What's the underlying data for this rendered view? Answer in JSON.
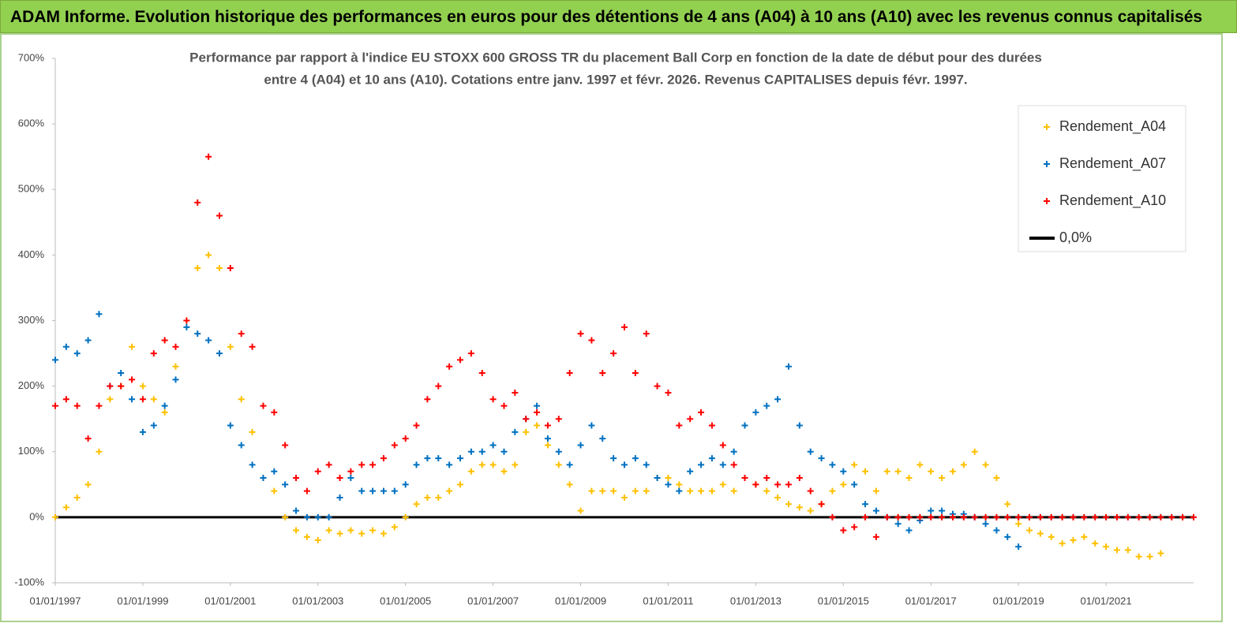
{
  "header": {
    "title": "ADAM Informe. Evolution historique des performances en euros pour des détentions de 4 ans (A04) à 10 ans (A10) avec les revenus connus capitalisés"
  },
  "chart_data": {
    "type": "scatter",
    "title_lines": [
      "Performance par rapport à l'indice EU STOXX 600 GROSS TR  du placement Ball Corp en fonction de la date de début pour des durées",
      "entre 4 (A04) et 10 ans (A10). Cotations entre janv. 1997 et févr. 2026. Revenus CAPITALISES depuis févr. 1997."
    ],
    "x": [
      "01/01/1997",
      "01/04/1997",
      "01/07/1997",
      "01/10/1997",
      "01/01/1998",
      "01/04/1998",
      "01/07/1998",
      "01/10/1998",
      "01/01/1999",
      "01/04/1999",
      "01/07/1999",
      "01/10/1999",
      "01/01/2000",
      "01/04/2000",
      "01/07/2000",
      "01/10/2000",
      "01/01/2001",
      "01/04/2001",
      "01/07/2001",
      "01/10/2001",
      "01/01/2002",
      "01/04/2002",
      "01/07/2002",
      "01/10/2002",
      "01/01/2003",
      "01/04/2003",
      "01/07/2003",
      "01/10/2003",
      "01/01/2004",
      "01/04/2004",
      "01/07/2004",
      "01/10/2004",
      "01/01/2005",
      "01/04/2005",
      "01/07/2005",
      "01/10/2005",
      "01/01/2006",
      "01/04/2006",
      "01/07/2006",
      "01/10/2006",
      "01/01/2007",
      "01/04/2007",
      "01/07/2007",
      "01/10/2007",
      "01/01/2008",
      "01/04/2008",
      "01/07/2008",
      "01/10/2008",
      "01/01/2009",
      "01/04/2009",
      "01/07/2009",
      "01/10/2009",
      "01/01/2010",
      "01/04/2010",
      "01/07/2010",
      "01/10/2010",
      "01/01/2011",
      "01/04/2011",
      "01/07/2011",
      "01/10/2011",
      "01/01/2012",
      "01/04/2012",
      "01/07/2012",
      "01/10/2012",
      "01/01/2013",
      "01/04/2013",
      "01/07/2013",
      "01/10/2013",
      "01/01/2014",
      "01/04/2014",
      "01/07/2014",
      "01/10/2014",
      "01/01/2015",
      "01/04/2015",
      "01/07/2015",
      "01/10/2015",
      "01/01/2016",
      "01/04/2016",
      "01/07/2016",
      "01/10/2016",
      "01/01/2017",
      "01/04/2017",
      "01/07/2017",
      "01/10/2017",
      "01/01/2018",
      "01/04/2018",
      "01/07/2018",
      "01/10/2018",
      "01/01/2019",
      "01/04/2019",
      "01/07/2019",
      "01/10/2019",
      "01/01/2020",
      "01/04/2020",
      "01/07/2020",
      "01/10/2020",
      "01/01/2021",
      "01/04/2021",
      "01/07/2021",
      "01/10/2021",
      "01/01/2022",
      "01/04/2022",
      "01/07/2022",
      "01/10/2022",
      "01/01/2023"
    ],
    "series": [
      {
        "name": "Rendement_A04",
        "color": "#ffc000",
        "values": [
          0,
          15,
          30,
          50,
          100,
          180,
          200,
          260,
          200,
          180,
          160,
          230,
          300,
          380,
          400,
          380,
          260,
          180,
          130,
          60,
          40,
          0,
          -20,
          -30,
          -35,
          -20,
          -25,
          -20,
          -25,
          -20,
          -25,
          -15,
          0,
          20,
          30,
          30,
          40,
          50,
          70,
          80,
          80,
          70,
          80,
          130,
          140,
          110,
          80,
          50,
          10,
          40,
          40,
          40,
          30,
          40,
          40,
          60,
          60,
          50,
          40,
          40,
          40,
          50,
          40,
          60,
          50,
          40,
          30,
          20,
          15,
          10,
          20,
          40,
          50,
          80,
          70,
          40,
          70,
          70,
          60,
          80,
          70,
          60,
          70,
          80,
          100,
          80,
          60,
          20,
          -10,
          -20,
          -25,
          -30,
          -40,
          -35,
          -30,
          -40,
          -45,
          -50,
          -50,
          -60,
          -60,
          -55,
          null,
          null,
          null
        ]
      },
      {
        "name": "Rendement_A07",
        "color": "#0070c0",
        "values": [
          240,
          260,
          250,
          270,
          310,
          200,
          220,
          180,
          130,
          140,
          170,
          210,
          290,
          280,
          270,
          250,
          140,
          110,
          80,
          60,
          70,
          50,
          10,
          0,
          0,
          0,
          30,
          60,
          40,
          40,
          40,
          40,
          50,
          80,
          90,
          90,
          80,
          90,
          100,
          100,
          110,
          100,
          130,
          150,
          170,
          120,
          100,
          80,
          110,
          140,
          120,
          90,
          80,
          90,
          80,
          60,
          50,
          40,
          70,
          80,
          90,
          80,
          100,
          140,
          160,
          170,
          180,
          230,
          140,
          100,
          90,
          80,
          70,
          50,
          20,
          10,
          0,
          -10,
          -20,
          -5,
          10,
          10,
          5,
          5,
          0,
          -10,
          -20,
          -30,
          -45,
          null,
          null,
          null,
          null,
          null,
          null,
          null,
          null,
          null,
          null,
          null,
          null,
          null,
          null,
          null,
          null
        ]
      },
      {
        "name": "Rendement_A10",
        "color": "#ff0000",
        "values": [
          170,
          180,
          170,
          120,
          170,
          200,
          200,
          210,
          180,
          250,
          270,
          260,
          300,
          480,
          550,
          460,
          380,
          280,
          260,
          170,
          160,
          110,
          60,
          40,
          70,
          80,
          60,
          70,
          80,
          80,
          90,
          110,
          120,
          140,
          180,
          200,
          230,
          240,
          250,
          220,
          180,
          170,
          190,
          150,
          160,
          140,
          150,
          220,
          280,
          270,
          220,
          250,
          290,
          220,
          280,
          200,
          190,
          140,
          150,
          160,
          140,
          110,
          80,
          60,
          50,
          60,
          50,
          50,
          60,
          40,
          20,
          0,
          -20,
          -15,
          0,
          -30,
          0,
          0,
          0,
          0,
          0,
          0,
          0,
          0,
          0,
          0,
          0,
          0,
          0,
          0,
          0,
          0,
          0,
          0,
          0,
          0,
          0,
          0,
          0,
          0,
          0,
          0,
          0,
          0,
          0
        ]
      }
    ],
    "reference_line": {
      "name": "0,0%",
      "value": 0,
      "color": "#000000"
    },
    "xlim": [
      "01/01/1997",
      "01/01/2023"
    ],
    "xticks": [
      "01/01/1997",
      "01/01/1999",
      "01/01/2001",
      "01/01/2003",
      "01/01/2005",
      "01/01/2007",
      "01/01/2009",
      "01/01/2011",
      "01/01/2013",
      "01/01/2015",
      "01/01/2017",
      "01/01/2019",
      "01/01/2021"
    ],
    "ylim": [
      -100,
      700
    ],
    "yticks": [
      {
        "value": -100,
        "label": "-100%"
      },
      {
        "value": 0,
        "label": "0%"
      },
      {
        "value": 100,
        "label": "100%"
      },
      {
        "value": 200,
        "label": "200%"
      },
      {
        "value": 300,
        "label": "300%"
      },
      {
        "value": 400,
        "label": "400%"
      },
      {
        "value": 500,
        "label": "500%"
      },
      {
        "value": 600,
        "label": "600%"
      },
      {
        "value": 700,
        "label": "700%"
      }
    ],
    "legend": "upper right"
  }
}
